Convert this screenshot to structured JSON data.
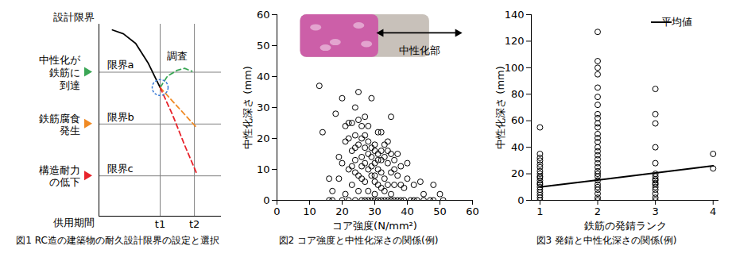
{
  "chart_data": [
    {
      "type": "line",
      "caption": "図1 RC造の建築物の耐久設計限界の設定と選択",
      "ylabel": "設計限界",
      "xlabel": "供用期間",
      "annotation": "調査",
      "xlim": [
        0,
        10
      ],
      "ylim": [
        0,
        10
      ],
      "xticks": [
        {
          "value": 5,
          "label": "t1"
        },
        {
          "value": 7.8,
          "label": "t2"
        }
      ],
      "yticks": [
        {
          "value": 7.5,
          "label": "限界a"
        },
        {
          "value": 4.8,
          "label": "限界b"
        },
        {
          "value": 2.1,
          "label": "限界c"
        }
      ],
      "limit_notes": [
        {
          "lines": [
            "中性化が",
            "鉄筋に",
            "到達"
          ],
          "color": "#3aa655"
        },
        {
          "lines": [
            "鉄筋腐食",
            "発生"
          ],
          "color": "#f08a24"
        },
        {
          "lines": [
            "構造耐力",
            "の低下"
          ],
          "color": "#e8232b"
        }
      ],
      "grid": false,
      "series": [
        {
          "x": [
            1.1,
            2,
            3,
            4,
            5
          ],
          "values": [
            9.7,
            9.5,
            9.0,
            8.0,
            6.7
          ],
          "color": "#000000",
          "line_style": "solid"
        },
        {
          "x": [
            5,
            5.6,
            6.4,
            7,
            7.6
          ],
          "values": [
            6.7,
            7.3,
            7.6,
            7.7,
            7.55
          ],
          "color": "#3aa655",
          "line_style": "dashed"
        },
        {
          "x": [
            5,
            6,
            7,
            8
          ],
          "values": [
            6.7,
            6.0,
            5.3,
            4.6
          ],
          "color": "#f08a24",
          "line_style": "dashed"
        },
        {
          "x": [
            5,
            6,
            7,
            8
          ],
          "values": [
            6.7,
            5.3,
            3.7,
            2.2
          ],
          "color": "#e8232b",
          "line_style": "dashed"
        }
      ]
    },
    {
      "type": "scatter",
      "caption": "図2 コア強度と中性化深さの関係(例)",
      "xlabel": "コア強度(N/mm²)",
      "ylabel": "中性化深さ (mm)",
      "annotation": "中性化部",
      "xlim": [
        0,
        60
      ],
      "ylim": [
        0,
        60
      ],
      "xticks": [
        0,
        10,
        20,
        30,
        40,
        50,
        60
      ],
      "yticks": [
        0,
        10,
        20,
        30,
        40,
        50,
        60
      ],
      "grid": false,
      "color": "#000000",
      "marker": "circle",
      "x": [
        13,
        14,
        16,
        17,
        18,
        19,
        20,
        20,
        21,
        21,
        22,
        22,
        22,
        23,
        23,
        23,
        24,
        24,
        24,
        24,
        25,
        25,
        25,
        25,
        26,
        26,
        26,
        26,
        27,
        27,
        27,
        27,
        27,
        28,
        28,
        28,
        28,
        29,
        29,
        29,
        29,
        29,
        30,
        30,
        30,
        30,
        30,
        31,
        31,
        31,
        31,
        32,
        32,
        32,
        32,
        32,
        33,
        33,
        33,
        33,
        34,
        34,
        34,
        34,
        35,
        35,
        35,
        35,
        36,
        36,
        36,
        37,
        37,
        37,
        38,
        38,
        39,
        39,
        40,
        40,
        41,
        42,
        43,
        44,
        45,
        47,
        48,
        50,
        51,
        25,
        23,
        22,
        28,
        31,
        26,
        24,
        33,
        29,
        27,
        35,
        30,
        20,
        19,
        21,
        34,
        36,
        32,
        38,
        42,
        45,
        48,
        17,
        16,
        24,
        26,
        28,
        30,
        31
      ],
      "values": [
        37,
        22,
        7,
        3,
        28,
        14,
        33,
        0,
        24,
        19,
        25,
        10,
        0,
        25,
        16,
        5,
        30,
        21,
        13,
        0,
        35,
        18,
        8,
        3,
        20,
        14,
        11,
        0,
        27,
        17,
        12,
        6,
        0,
        15,
        10,
        3,
        0,
        33,
        17,
        14,
        8,
        0,
        16,
        12,
        6,
        2,
        0,
        22,
        15,
        10,
        0,
        16,
        13,
        9,
        4,
        0,
        18,
        14,
        7,
        0,
        16,
        12,
        5,
        0,
        27,
        15,
        9,
        2,
        13,
        10,
        0,
        15,
        8,
        0,
        11,
        5,
        4,
        0,
        12,
        7,
        0,
        5,
        0,
        6,
        2,
        0,
        5,
        2,
        0,
        26,
        11,
        20,
        24,
        5,
        7,
        17,
        3,
        11,
        21,
        0,
        18,
        12,
        7,
        2,
        19,
        5,
        22,
        0,
        0,
        0,
        0,
        0,
        0,
        9,
        24,
        19,
        8,
        13
      ]
    },
    {
      "type": "scatter",
      "caption": "図3 発錆と中性化深さの関係(例)",
      "xlabel": "鉄筋の発錆ランク",
      "ylabel": "中性化深さ (mm)",
      "xlim": [
        0.85,
        4.1
      ],
      "ylim": [
        0,
        140
      ],
      "xticks": [
        1,
        2,
        3,
        4
      ],
      "yticks": [
        0,
        20,
        40,
        60,
        80,
        100,
        120,
        140
      ],
      "grid": false,
      "legend": "top-right",
      "series": [
        {
          "type": "scatter",
          "color": "#000000",
          "marker": "circle",
          "x": [
            1,
            1,
            1,
            1,
            1,
            1,
            1,
            1,
            1,
            1,
            1,
            1,
            1,
            1,
            1,
            1,
            1,
            1,
            1,
            2,
            2,
            2,
            2,
            2,
            2,
            2,
            2,
            2,
            2,
            2,
            2,
            2,
            2,
            2,
            2,
            2,
            2,
            2,
            2,
            2,
            2,
            2,
            2,
            2,
            2,
            2,
            2,
            2,
            2,
            3,
            3,
            3,
            3,
            3,
            3,
            3,
            3,
            3,
            3,
            3,
            3,
            3,
            3,
            3,
            3,
            4,
            4
          ],
          "values": [
            55,
            35,
            32,
            30,
            27,
            25,
            22,
            20,
            18,
            17,
            15,
            13,
            12,
            10,
            8,
            6,
            4,
            2,
            0,
            127,
            105,
            100,
            95,
            85,
            78,
            72,
            65,
            62,
            58,
            55,
            50,
            47,
            44,
            40,
            37,
            34,
            31,
            28,
            25,
            22,
            20,
            18,
            15,
            12,
            10,
            8,
            5,
            2,
            0,
            84,
            65,
            58,
            40,
            28,
            20,
            18,
            16,
            15,
            13,
            12,
            10,
            8,
            5,
            2,
            0,
            35,
            24
          ]
        },
        {
          "type": "line",
          "name": "平均値",
          "color": "#000000",
          "line_style": "solid",
          "x": [
            1,
            4
          ],
          "values": [
            10,
            26
          ]
        }
      ]
    }
  ]
}
